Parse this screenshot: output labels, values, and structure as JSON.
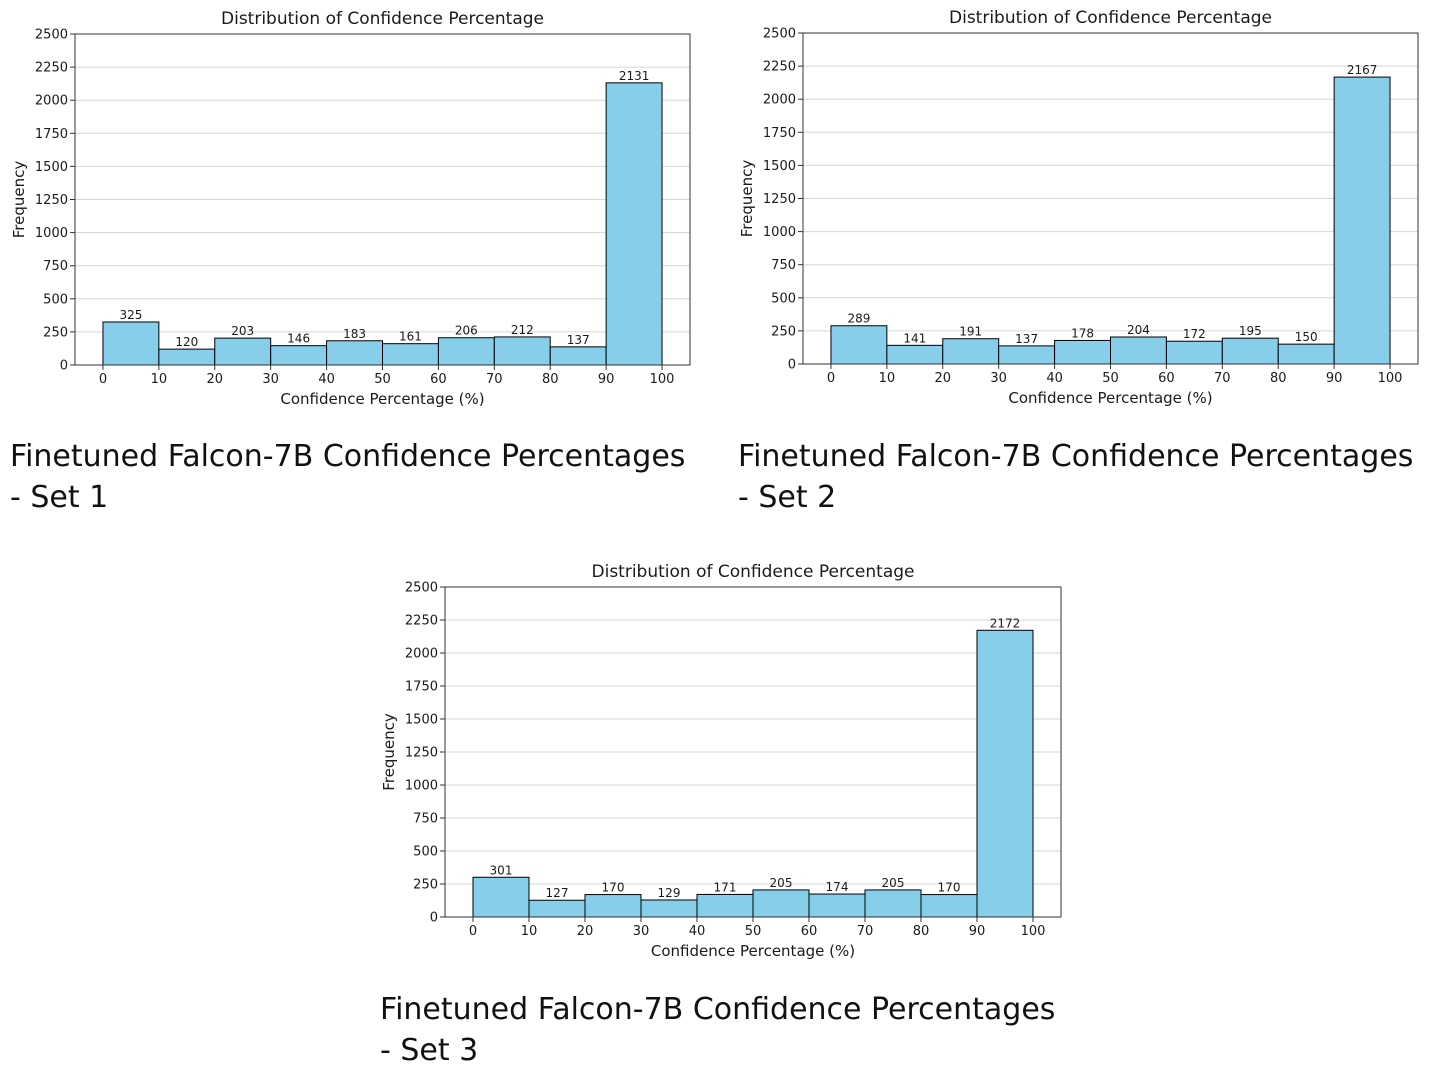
{
  "panels": [
    {
      "caption": "Finetuned Falcon-7B Confidence Percentages\n- Set 1",
      "chart_data": {
        "type": "bar",
        "title": "Distribution of Confidence Percentage",
        "xlabel": "Confidence Percentage (%)",
        "ylabel": "Frequency",
        "bin_edges": [
          0,
          10,
          20,
          30,
          40,
          50,
          60,
          70,
          80,
          90,
          100
        ],
        "values": [
          325,
          120,
          203,
          146,
          183,
          161,
          206,
          212,
          137,
          2131
        ],
        "xticks": [
          0,
          10,
          20,
          30,
          40,
          50,
          60,
          70,
          80,
          90,
          100
        ],
        "yticks": [
          0,
          250,
          500,
          750,
          1000,
          1250,
          1500,
          1750,
          2000,
          2250,
          2500
        ],
        "xlim": [
          -5,
          105
        ],
        "ylim": [
          0,
          2500
        ],
        "grid": "y",
        "bar_color": "#87CEEB",
        "edge_color": "#000000"
      }
    },
    {
      "caption": "Finetuned Falcon-7B Confidence Percentages\n- Set 2",
      "chart_data": {
        "type": "bar",
        "title": "Distribution of Confidence Percentage",
        "xlabel": "Confidence Percentage (%)",
        "ylabel": "Frequency",
        "bin_edges": [
          0,
          10,
          20,
          30,
          40,
          50,
          60,
          70,
          80,
          90,
          100
        ],
        "values": [
          289,
          141,
          191,
          137,
          178,
          204,
          172,
          195,
          150,
          2167
        ],
        "xticks": [
          0,
          10,
          20,
          30,
          40,
          50,
          60,
          70,
          80,
          90,
          100
        ],
        "yticks": [
          0,
          250,
          500,
          750,
          1000,
          1250,
          1500,
          1750,
          2000,
          2250,
          2500
        ],
        "xlim": [
          -5,
          105
        ],
        "ylim": [
          0,
          2500
        ],
        "grid": "y",
        "bar_color": "#87CEEB",
        "edge_color": "#000000"
      }
    },
    {
      "caption": "Finetuned Falcon-7B Confidence Percentages\n- Set 3",
      "chart_data": {
        "type": "bar",
        "title": "Distribution of Confidence Percentage",
        "xlabel": "Confidence Percentage (%)",
        "ylabel": "Frequency",
        "bin_edges": [
          0,
          10,
          20,
          30,
          40,
          50,
          60,
          70,
          80,
          90,
          100
        ],
        "values": [
          301,
          127,
          170,
          129,
          171,
          205,
          174,
          205,
          170,
          2172
        ],
        "xticks": [
          0,
          10,
          20,
          30,
          40,
          50,
          60,
          70,
          80,
          90,
          100
        ],
        "yticks": [
          0,
          250,
          500,
          750,
          1000,
          1250,
          1500,
          1750,
          2000,
          2250,
          2500
        ],
        "xlim": [
          -5,
          105
        ],
        "ylim": [
          0,
          2500
        ],
        "grid": "y",
        "bar_color": "#87CEEB",
        "edge_color": "#000000"
      }
    }
  ]
}
